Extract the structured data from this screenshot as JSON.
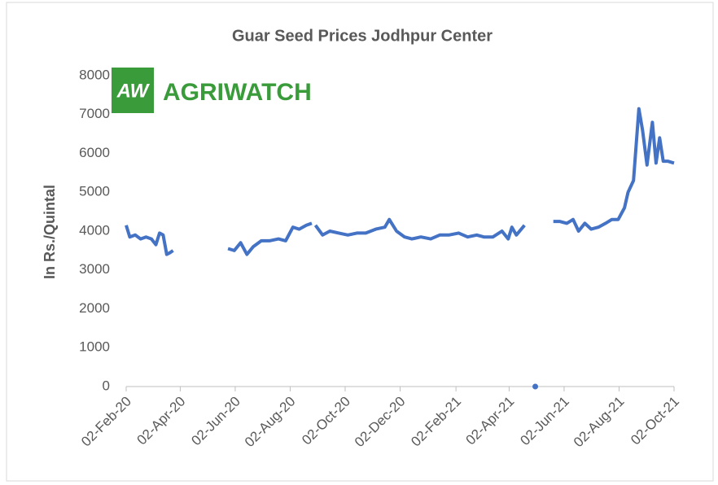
{
  "logo": {
    "mark": "AW",
    "name": "AGRIWATCH"
  },
  "chart_data": {
    "type": "line",
    "title": "Guar Seed Prices Jodhpur Center",
    "y_label": "In Rs./Quintal",
    "x": [
      "2020-02-02",
      "2020-02-06",
      "2020-02-12",
      "2020-02-18",
      "2020-02-24",
      "2020-03-01",
      "2020-03-06",
      "2020-03-10",
      "2020-03-14",
      "2020-03-18",
      "2020-03-22",
      "2020-03-25",
      "2020-04-15",
      "2020-05-25",
      "2020-06-01",
      "2020-06-08",
      "2020-06-15",
      "2020-06-22",
      "2020-07-01",
      "2020-07-10",
      "2020-07-20",
      "2020-07-28",
      "2020-08-05",
      "2020-08-12",
      "2020-08-20",
      "2020-08-26",
      "2020-08-28",
      "2020-08-30",
      "2020-09-07",
      "2020-09-15",
      "2020-09-25",
      "2020-10-05",
      "2020-10-15",
      "2020-10-25",
      "2020-11-05",
      "2020-11-15",
      "2020-11-20",
      "2020-11-28",
      "2020-12-07",
      "2020-12-15",
      "2020-12-25",
      "2021-01-05",
      "2021-01-15",
      "2021-01-25",
      "2021-02-05",
      "2021-02-15",
      "2021-02-25",
      "2021-03-05",
      "2021-03-15",
      "2021-03-25",
      "2021-04-01",
      "2021-04-05",
      "2021-04-10",
      "2021-04-19",
      "2021-04-25",
      "2021-05-01",
      "2021-05-10",
      "2021-05-21",
      "2021-05-28",
      "2021-06-05",
      "2021-06-12",
      "2021-06-18",
      "2021-06-25",
      "2021-07-02",
      "2021-07-10",
      "2021-07-18",
      "2021-07-25",
      "2021-08-01",
      "2021-08-08",
      "2021-08-12",
      "2021-08-18",
      "2021-08-24",
      "2021-08-28",
      "2021-09-02",
      "2021-09-08",
      "2021-09-12",
      "2021-09-16",
      "2021-09-20",
      "2021-09-25",
      "2021-10-02"
    ],
    "series": [
      {
        "name": "Guar Seed",
        "color": "#4472c4",
        "values": [
          4150,
          3850,
          3900,
          3800,
          3850,
          3800,
          3650,
          3950,
          3900,
          3400,
          3450,
          3500,
          null,
          3550,
          3500,
          3700,
          3400,
          3600,
          3750,
          3750,
          3800,
          3750,
          4100,
          4050,
          4150,
          4200,
          null,
          4150,
          3900,
          4000,
          3950,
          3900,
          3950,
          3950,
          4050,
          4100,
          4300,
          4000,
          3850,
          3800,
          3850,
          3800,
          3900,
          3900,
          3950,
          3850,
          3900,
          3850,
          3850,
          4000,
          3800,
          4100,
          3900,
          4150,
          null,
          0,
          null,
          4250,
          4250,
          4200,
          4300,
          4000,
          4200,
          4050,
          4100,
          4200,
          4300,
          4300,
          4600,
          5000,
          5300,
          7150,
          6600,
          5700,
          6800,
          5750,
          6400,
          5800,
          5800,
          5750
        ]
      }
    ],
    "xlim": [
      "2020-02-02",
      "2021-10-02"
    ],
    "xticks": [
      {
        "value": "2020-02-02",
        "label": "02-Feb-20"
      },
      {
        "value": "2020-04-02",
        "label": "02-Apr-20"
      },
      {
        "value": "2020-06-02",
        "label": "02-Jun-20"
      },
      {
        "value": "2020-08-02",
        "label": "02-Aug-20"
      },
      {
        "value": "2020-10-02",
        "label": "02-Oct-20"
      },
      {
        "value": "2020-12-02",
        "label": "02-Dec-20"
      },
      {
        "value": "2021-02-02",
        "label": "02-Feb-21"
      },
      {
        "value": "2021-04-02",
        "label": "02-Apr-21"
      },
      {
        "value": "2021-06-02",
        "label": "02-Jun-21"
      },
      {
        "value": "2021-08-02",
        "label": "02-Aug-21"
      },
      {
        "value": "2021-10-02",
        "label": "02-Oct-21"
      }
    ],
    "ylim": [
      0,
      8000
    ],
    "yticks": [
      0,
      1000,
      2000,
      3000,
      4000,
      5000,
      6000,
      7000,
      8000
    ],
    "grid": false
  }
}
